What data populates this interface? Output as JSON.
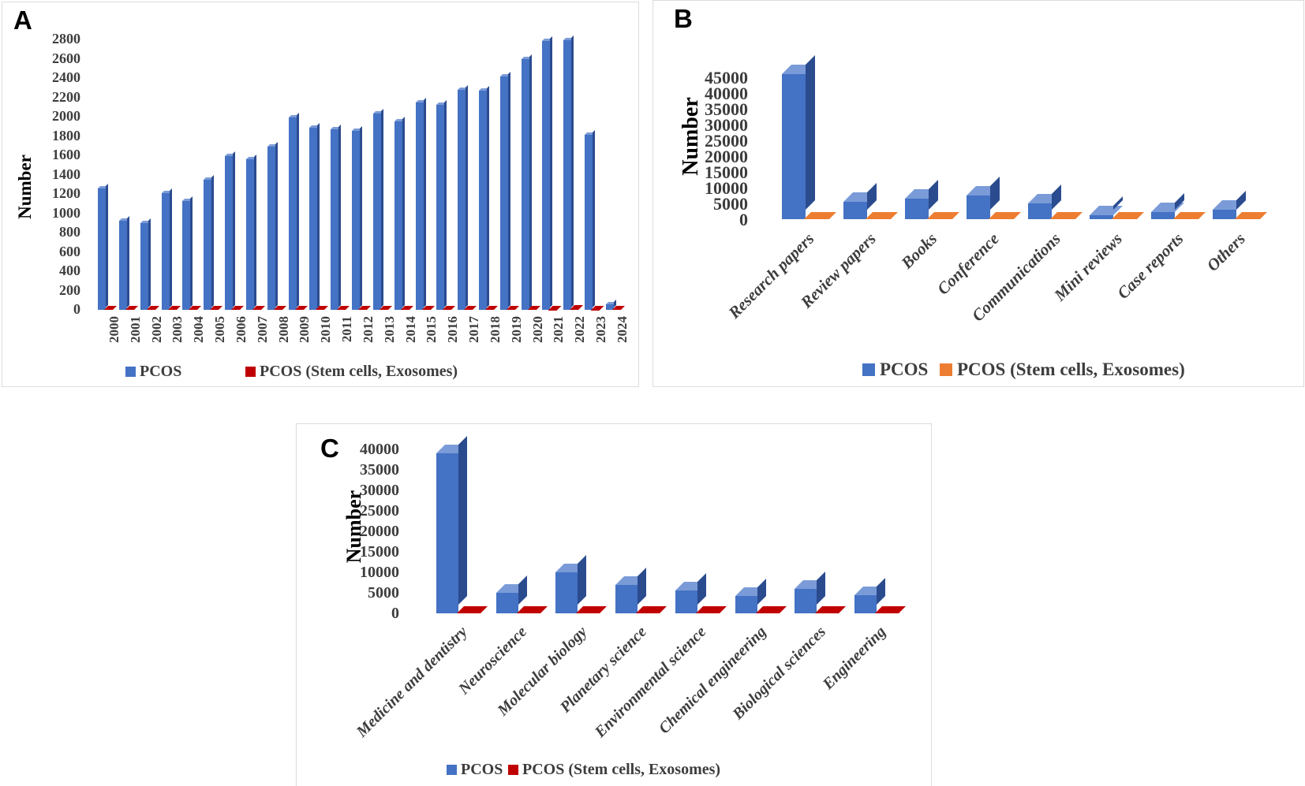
{
  "panels": {
    "A": {
      "label": "A",
      "ylabel": "Number",
      "legend": [
        {
          "label": "PCOS",
          "color": "#4472C4"
        },
        {
          "label": "PCOS (Stem cells, Exosomes)",
          "color": "#C00000"
        }
      ]
    },
    "B": {
      "label": "B",
      "ylabel": "Number",
      "legend": [
        {
          "label": "PCOS",
          "color": "#4472C4"
        },
        {
          "label": "PCOS (Stem cells, Exosomes)",
          "color": "#ED7D31"
        }
      ]
    },
    "C": {
      "label": "C",
      "ylabel": "Number",
      "legend": [
        {
          "label": "PCOS",
          "color": "#4472C4"
        },
        {
          "label": "PCOS (Stem cells, Exosomes)",
          "color": "#C00000"
        }
      ]
    }
  },
  "chart_data": [
    {
      "id": "A",
      "type": "bar",
      "title": "",
      "xlabel": "",
      "ylabel": "Number",
      "ylim": [
        0,
        2800
      ],
      "ytick_step": 200,
      "grid": false,
      "legend_position": "bottom",
      "categories": [
        "2000",
        "2001",
        "2002",
        "2003",
        "2004",
        "2005",
        "2006",
        "2007",
        "2008",
        "2009",
        "2010",
        "2011",
        "2012",
        "2013",
        "2014",
        "2015",
        "2016",
        "2017",
        "2018",
        "2019",
        "2020",
        "2021",
        "2022",
        "2023",
        "2024"
      ],
      "series": [
        {
          "name": "PCOS",
          "color": "#4472C4",
          "values": [
            1260,
            920,
            900,
            1210,
            1130,
            1350,
            1590,
            1560,
            1690,
            1990,
            1890,
            1870,
            1850,
            2030,
            1950,
            2150,
            2120,
            2280,
            2270,
            2420,
            2600,
            2780,
            2790,
            1810,
            60
          ]
        },
        {
          "name": "PCOS (Stem cells, Exosomes)",
          "color": "#C00000",
          "values": [
            10,
            10,
            12,
            12,
            12,
            15,
            15,
            15,
            18,
            20,
            20,
            20,
            22,
            25,
            25,
            28,
            28,
            30,
            32,
            35,
            40,
            45,
            50,
            45,
            15
          ]
        }
      ]
    },
    {
      "id": "B",
      "type": "bar",
      "title": "",
      "xlabel": "",
      "ylabel": "Number",
      "ylim": [
        0,
        45000
      ],
      "ytick_step": 5000,
      "grid": false,
      "legend_position": "bottom",
      "categories": [
        "Research papers",
        "Review papers",
        "Books",
        "Conference",
        "Communications",
        "Mini reviews",
        "Case reports",
        "Others"
      ],
      "series": [
        {
          "name": "PCOS",
          "color": "#4472C4",
          "values": [
            46000,
            5500,
            6500,
            7500,
            5000,
            1300,
            2200,
            3000
          ]
        },
        {
          "name": "PCOS (Stem cells, Exosomes)",
          "color": "#ED7D31",
          "values": [
            200,
            150,
            150,
            150,
            150,
            100,
            100,
            100
          ]
        }
      ]
    },
    {
      "id": "C",
      "type": "bar",
      "title": "",
      "xlabel": "",
      "ylabel": "Number",
      "ylim": [
        0,
        40000
      ],
      "ytick_step": 5000,
      "grid": false,
      "legend_position": "bottom",
      "categories": [
        "Medicine and dentistry",
        "Neuroscience",
        "Molecular biology",
        "Planetary science",
        "Environmental science",
        "Chemical engineering",
        "Biological sciences",
        "Engineering"
      ],
      "series": [
        {
          "name": "PCOS",
          "color": "#4472C4",
          "values": [
            39000,
            5000,
            10000,
            7000,
            5500,
            4200,
            6000,
            4500
          ]
        },
        {
          "name": "PCOS (Stem cells, Exosomes)",
          "color": "#C00000",
          "values": [
            300,
            200,
            300,
            250,
            200,
            200,
            200,
            200
          ]
        }
      ]
    }
  ]
}
